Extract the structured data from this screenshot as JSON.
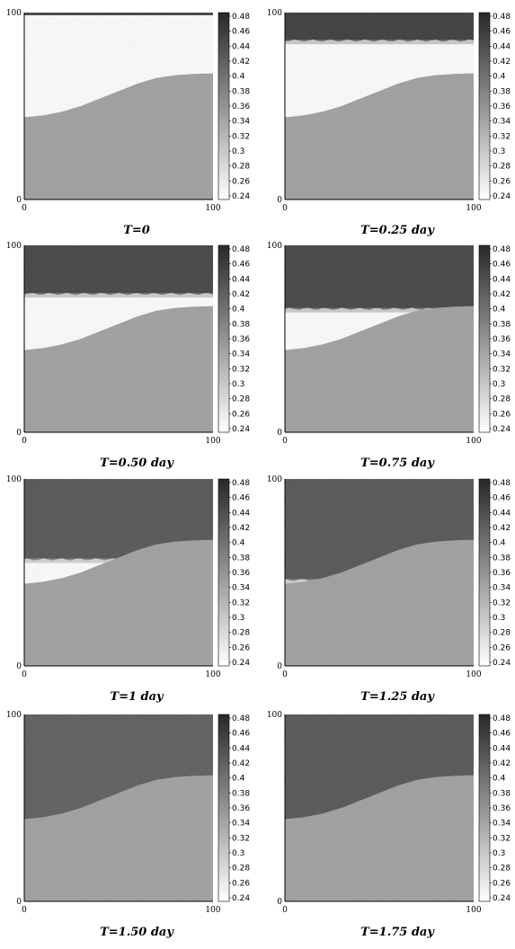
{
  "chart_data": [
    {
      "type": "heatmap",
      "title": "T=0",
      "front_level": 98,
      "top_saturation": 0.0
    },
    {
      "type": "heatmap",
      "title": "T=0.25 day",
      "front_level": 85,
      "top_saturation": 0.47
    },
    {
      "type": "heatmap",
      "title": "T=0.50 day",
      "front_level": 74,
      "top_saturation": 0.46
    },
    {
      "type": "heatmap",
      "title": "T=0.75 day",
      "front_level": 66,
      "top_saturation": 0.46
    },
    {
      "type": "heatmap",
      "title": "T=1 day",
      "front_level": 57,
      "top_saturation": 0.44
    },
    {
      "type": "heatmap",
      "title": "T=1.25 day",
      "front_level": 46,
      "top_saturation": 0.44
    },
    {
      "type": "heatmap",
      "title": "T=1.50 day",
      "front_level": 0,
      "top_saturation": 0.43
    },
    {
      "type": "heatmap",
      "title": "T=1.75 day",
      "front_level": 0,
      "top_saturation": 0.44
    }
  ],
  "shared": {
    "x_ticks": [
      "0",
      "100"
    ],
    "y_ticks": [
      "0",
      "100"
    ],
    "xlim": [
      0,
      100
    ],
    "ylim": [
      0,
      100
    ],
    "colorbar": {
      "range": [
        0.24,
        0.48
      ],
      "ticks": [
        "0.48",
        "0.46",
        "0.44",
        "0.42",
        "0.4",
        "0.38",
        "0.36",
        "0.34",
        "0.32",
        "0.3",
        "0.28",
        "0.26",
        "0.24"
      ]
    },
    "interface_curve": {
      "x": [
        0,
        10,
        20,
        30,
        40,
        50,
        60,
        70,
        80,
        90,
        100
      ],
      "y": [
        44,
        45,
        47,
        50,
        54,
        58,
        62,
        65,
        66.5,
        67.2,
        67.5
      ]
    },
    "lower_region_saturation": 0.35,
    "dry_region_saturation": 0.24
  }
}
